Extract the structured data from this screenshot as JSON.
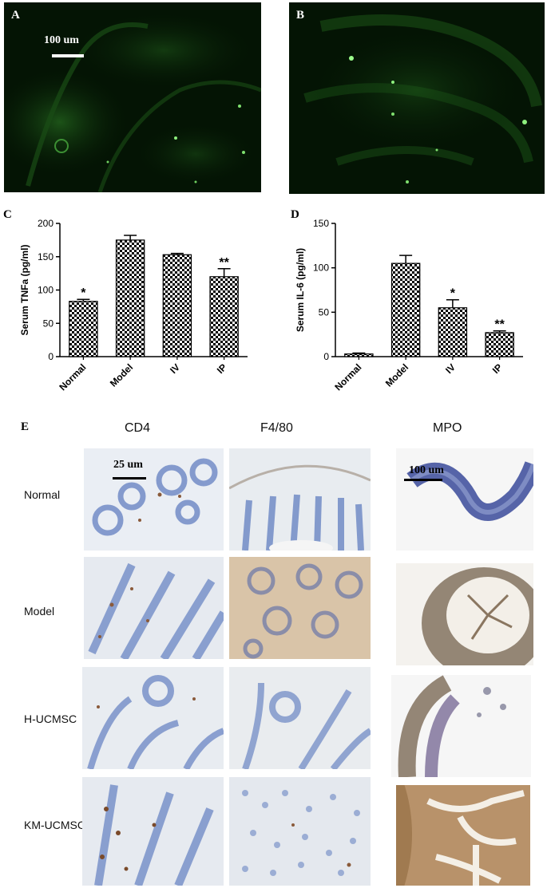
{
  "panels": {
    "A": {
      "letter": "A",
      "scale_label": "100 um"
    },
    "B": {
      "letter": "B"
    },
    "C": {
      "letter": "C"
    },
    "D": {
      "letter": "D"
    },
    "E": {
      "letter": "E"
    }
  },
  "chart_data": [
    {
      "type": "bar",
      "ylabel": "Serum TNFa (pg/ml)",
      "categories": [
        "Normal",
        "Model",
        "IV",
        "IP"
      ],
      "values": [
        83,
        175,
        153,
        120
      ],
      "errors": [
        3,
        7,
        2,
        12
      ],
      "significance": [
        "*",
        "",
        "",
        "**"
      ],
      "ylim": [
        0,
        200
      ],
      "yticks": [
        0,
        50,
        100,
        150,
        200
      ],
      "yticklabels": [
        "0",
        "50",
        "100",
        "150",
        "200"
      ]
    },
    {
      "type": "bar",
      "ylabel": "Serum IL-6 (pg/ml)",
      "categories": [
        "Normal",
        "Model",
        "IV",
        "IP"
      ],
      "values": [
        3,
        105,
        55,
        27
      ],
      "errors": [
        1,
        9,
        9,
        2
      ],
      "significance": [
        "",
        "",
        "*",
        "**"
      ],
      "ylim": [
        0,
        150
      ],
      "yticks": [
        0,
        50,
        100,
        150
      ],
      "yticklabels": [
        "0",
        "50",
        "100",
        "150"
      ]
    }
  ],
  "grid": {
    "columns": [
      "CD4",
      "F4/80",
      "MPO"
    ],
    "rows": [
      "Normal",
      "Model",
      "H-UCMSC",
      "KM-UCMSC"
    ],
    "scale_cd4": "25 um",
    "scale_mpo": "100 um"
  }
}
